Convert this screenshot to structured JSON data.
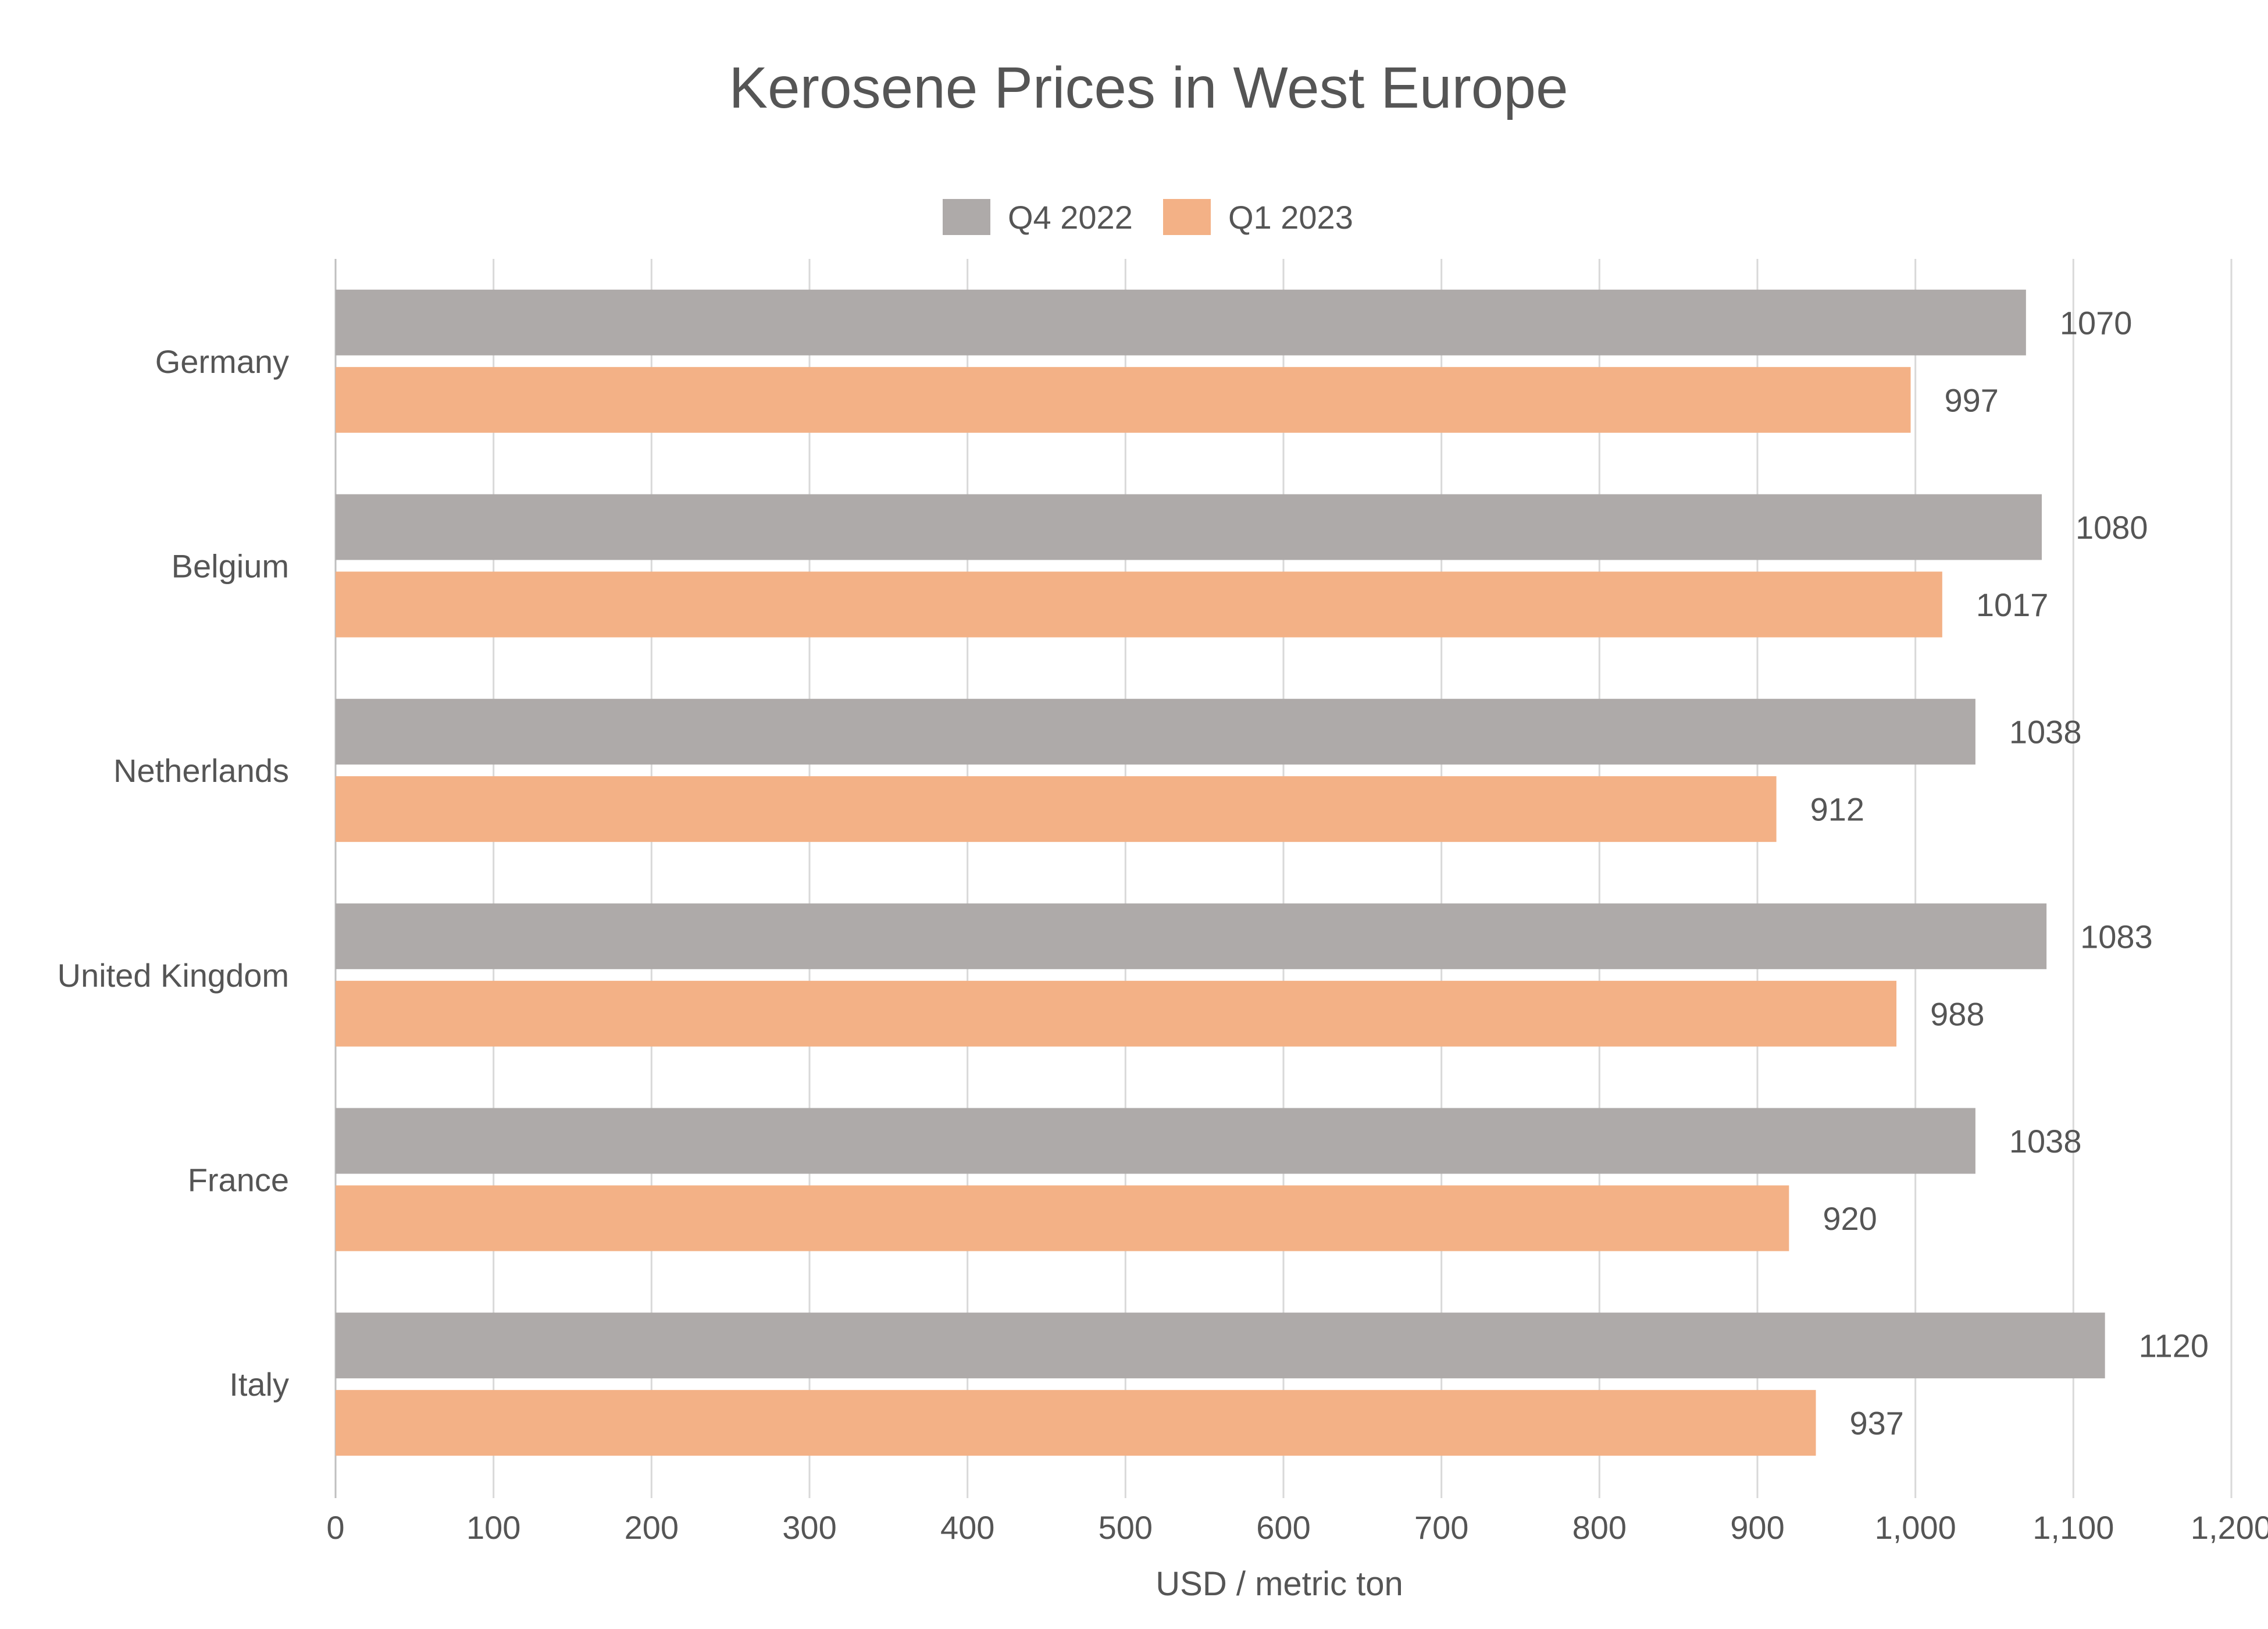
{
  "chart_data": {
    "type": "bar",
    "orientation": "horizontal",
    "title": "Kerosene Prices in West Europe",
    "xlabel": "USD / metric ton",
    "ylabel": "",
    "categories": [
      "Germany",
      "Belgium",
      "Netherlands",
      "United Kingdom",
      "France",
      "Italy"
    ],
    "series": [
      {
        "name": "Q4 2022",
        "color": "#aeaaa9",
        "values": [
          1070,
          1080,
          1038,
          1083,
          1038,
          1120
        ]
      },
      {
        "name": "Q1 2023",
        "color": "#f3b186",
        "values": [
          997,
          1017,
          912,
          988,
          920,
          937
        ]
      }
    ],
    "xlim": [
      0,
      1200
    ],
    "x_ticks": [
      0,
      100,
      200,
      300,
      400,
      500,
      600,
      700,
      800,
      900,
      1000,
      1100,
      1200
    ],
    "x_tick_labels": [
      "0",
      "100",
      "200",
      "300",
      "400",
      "500",
      "600",
      "700",
      "800",
      "900",
      "1,000",
      "1,100",
      "1,200"
    ],
    "grid": true,
    "legend_position": "top-center",
    "data_labels": true
  },
  "colors": {
    "text": "#555555",
    "grid": "#d9d9d9",
    "axis": "#bfbfbf"
  }
}
